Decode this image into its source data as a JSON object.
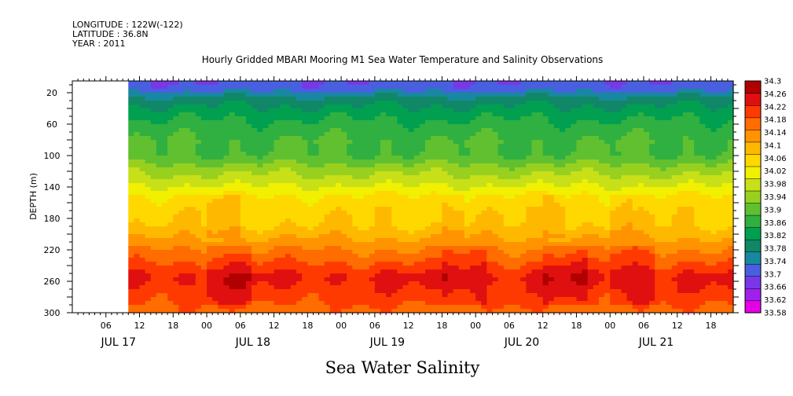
{
  "header": {
    "longitude": "LONGITUDE : 122W(-122)",
    "latitude": "LATITUDE : 36.8N",
    "year": "YEAR : 2011"
  },
  "chart_data": {
    "type": "heatmap",
    "title": "Hourly Gridded MBARI Mooring M1 Sea Water Temperature and Salinity Observations",
    "bottom_title": "Sea Water Salinity",
    "ylabel": "DEPTH (m)",
    "y_ticks": [
      20,
      60,
      100,
      140,
      180,
      220,
      260,
      300
    ],
    "ylim": [
      300,
      5
    ],
    "x_hours_range": [
      0,
      118
    ],
    "x_data_start_hour": 10,
    "x_ticks": [
      {
        "hour": 6,
        "label": "06"
      },
      {
        "hour": 12,
        "label": "12"
      },
      {
        "hour": 18,
        "label": "18"
      },
      {
        "hour": 24,
        "label": "00"
      },
      {
        "hour": 30,
        "label": "06"
      },
      {
        "hour": 36,
        "label": "12"
      },
      {
        "hour": 42,
        "label": "18"
      },
      {
        "hour": 48,
        "label": "00"
      },
      {
        "hour": 54,
        "label": "06"
      },
      {
        "hour": 60,
        "label": "12"
      },
      {
        "hour": 66,
        "label": "18"
      },
      {
        "hour": 72,
        "label": "00"
      },
      {
        "hour": 78,
        "label": "06"
      },
      {
        "hour": 84,
        "label": "12"
      },
      {
        "hour": 90,
        "label": "18"
      },
      {
        "hour": 96,
        "label": "00"
      },
      {
        "hour": 102,
        "label": "06"
      },
      {
        "hour": 108,
        "label": "12"
      },
      {
        "hour": 114,
        "label": "18"
      }
    ],
    "day_labels": [
      {
        "hour": 6,
        "label": "JUL 17"
      },
      {
        "hour": 30,
        "label": "JUL 18"
      },
      {
        "hour": 54,
        "label": "JUL 19"
      },
      {
        "hour": 78,
        "label": "JUL 20"
      },
      {
        "hour": 102,
        "label": "JUL 21"
      }
    ],
    "colorbar": {
      "levels": [
        33.58,
        33.62,
        33.66,
        33.7,
        33.74,
        33.78,
        33.82,
        33.86,
        33.9,
        33.94,
        33.98,
        34.02,
        34.06,
        34.1,
        34.14,
        34.18,
        34.22,
        34.26,
        34.3
      ],
      "labels": [
        "33.58",
        "33.62",
        "33.66",
        "33.7",
        "33.74",
        "33.78",
        "33.82",
        "33.86",
        "33.9",
        "33.94",
        "33.98",
        "34.02",
        "34.06",
        "34.1",
        "34.14",
        "34.18",
        "34.22",
        "34.26",
        "34.3"
      ],
      "colors": [
        "#e600e6",
        "#a020f0",
        "#7838e8",
        "#4860e0",
        "#1888a0",
        "#108868",
        "#00a050",
        "#30b040",
        "#60c030",
        "#98d020",
        "#c8e018",
        "#f0f000",
        "#ffd800",
        "#ffb800",
        "#ff9400",
        "#ff6c00",
        "#ff3a00",
        "#e01010",
        "#b00000"
      ]
    },
    "depth_profile": [
      {
        "depth": 10,
        "value": 33.72
      },
      {
        "depth": 20,
        "value": 33.76
      },
      {
        "depth": 30,
        "value": 33.8
      },
      {
        "depth": 45,
        "value": 33.84
      },
      {
        "depth": 60,
        "value": 33.87
      },
      {
        "depth": 80,
        "value": 33.9
      },
      {
        "depth": 100,
        "value": 33.9
      },
      {
        "depth": 120,
        "value": 33.97
      },
      {
        "depth": 135,
        "value": 34.01
      },
      {
        "depth": 150,
        "value": 34.06
      },
      {
        "depth": 170,
        "value": 34.09
      },
      {
        "depth": 190,
        "value": 34.1
      },
      {
        "depth": 205,
        "value": 34.14
      },
      {
        "depth": 220,
        "value": 34.18
      },
      {
        "depth": 240,
        "value": 34.23
      },
      {
        "depth": 255,
        "value": 34.27
      },
      {
        "depth": 270,
        "value": 34.25
      },
      {
        "depth": 290,
        "value": 34.22
      },
      {
        "depth": 300,
        "value": 34.2
      }
    ],
    "deep_high_salinity_hours": [
      [
        24,
        32
      ],
      [
        66,
        74
      ],
      [
        84,
        92
      ],
      [
        96,
        104
      ]
    ],
    "mid_orange_hours": [
      [
        24,
        30
      ],
      [
        66,
        70
      ],
      [
        84,
        88
      ],
      [
        96,
        100
      ]
    ]
  }
}
